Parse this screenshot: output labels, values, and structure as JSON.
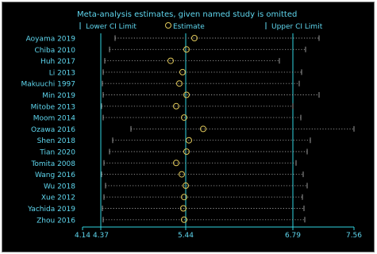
{
  "chart_data": {
    "type": "forest",
    "title": "Meta-analysis estimates, given named study is omitted",
    "legend": {
      "position": "top",
      "items": [
        {
          "symbol": "|",
          "label": "Lower CI Limit"
        },
        {
          "symbol": "O",
          "label": "Estimate"
        },
        {
          "symbol": "|",
          "label": "Upper CI Limit"
        }
      ]
    },
    "x_ticks": [
      {
        "value": 4.14,
        "label": "4.14"
      },
      {
        "value": 4.37,
        "label": "4.37"
      },
      {
        "value": 5.44,
        "label": "5.44"
      },
      {
        "value": 6.79,
        "label": "6.79"
      },
      {
        "value": 7.56,
        "label": "7.56"
      }
    ],
    "xlim": [
      4.14,
      7.56
    ],
    "vertical_reference_lines": [
      4.37,
      5.44,
      6.79
    ],
    "studies": [
      {
        "name": "Aoyama 2019",
        "lower": 4.55,
        "estimate": 5.55,
        "upper": 7.12
      },
      {
        "name": "Chiba 2010",
        "lower": 4.48,
        "estimate": 5.45,
        "upper": 6.95
      },
      {
        "name": "Huh 2017",
        "lower": 4.42,
        "estimate": 5.25,
        "upper": 6.62
      },
      {
        "name": "Li 2013",
        "lower": 4.4,
        "estimate": 5.4,
        "upper": 6.9
      },
      {
        "name": "Makuuchi 1997",
        "lower": 4.39,
        "estimate": 5.36,
        "upper": 6.87
      },
      {
        "name": "Min 2019",
        "lower": 4.4,
        "estimate": 5.45,
        "upper": 7.12
      },
      {
        "name": "Mitobe 2013",
        "lower": 4.38,
        "estimate": 5.32,
        "upper": 6.79
      },
      {
        "name": "Moom 2014",
        "lower": 4.4,
        "estimate": 5.42,
        "upper": 6.89
      },
      {
        "name": "Ozawa 2016",
        "lower": 4.75,
        "estimate": 5.66,
        "upper": 7.56
      },
      {
        "name": "Shen 2018",
        "lower": 4.52,
        "estimate": 5.48,
        "upper": 7.01
      },
      {
        "name": "Tian 2020",
        "lower": 4.48,
        "estimate": 5.45,
        "upper": 6.97
      },
      {
        "name": "Tomita 2008",
        "lower": 4.41,
        "estimate": 5.32,
        "upper": 6.83
      },
      {
        "name": "Wang 2016",
        "lower": 4.38,
        "estimate": 5.39,
        "upper": 6.92
      },
      {
        "name": "Wu 2018",
        "lower": 4.43,
        "estimate": 5.44,
        "upper": 6.97
      },
      {
        "name": "Xue 2012",
        "lower": 4.41,
        "estimate": 5.42,
        "upper": 6.91
      },
      {
        "name": "Yachida 2019",
        "lower": 4.39,
        "estimate": 5.41,
        "upper": 6.93
      },
      {
        "name": "Zhou 2016",
        "lower": 4.4,
        "estimate": 5.42,
        "upper": 6.94
      }
    ]
  },
  "colors": {
    "background": "#000000",
    "cyan": "#2fd3df",
    "estimate": "#e0c85a",
    "interval": "#9a9a9a",
    "text": "#5fd7ef"
  }
}
